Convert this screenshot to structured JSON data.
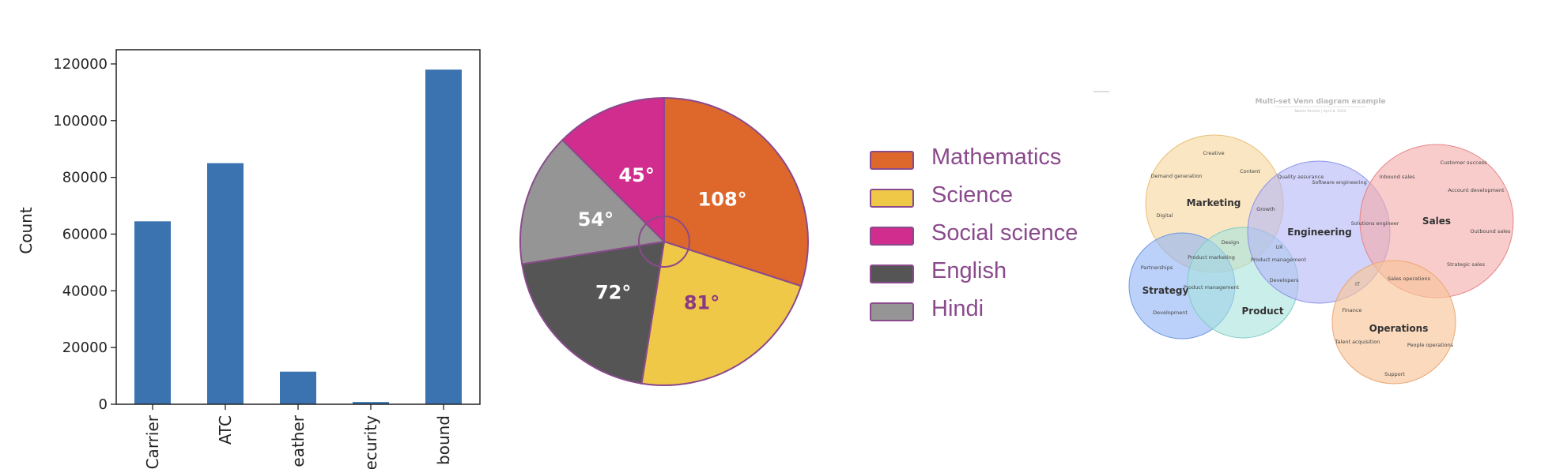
{
  "chart_data": [
    {
      "type": "bar",
      "categories": [
        "Carrier",
        "ATC",
        "eather",
        "ecurity",
        "bound"
      ],
      "values": [
        64500,
        85000,
        11500,
        800,
        118000
      ],
      "ylabel": "Count",
      "ylim": [
        0,
        125000
      ],
      "yticks": [
        0,
        20000,
        40000,
        60000,
        80000,
        100000,
        120000
      ],
      "grid": false,
      "colors": {
        "bar": "#3a73b0"
      }
    },
    {
      "type": "pie",
      "slices": [
        {
          "name": "Mathematics",
          "degrees": 108,
          "label": "108°",
          "color": "#de672b"
        },
        {
          "name": "Science",
          "degrees": 81,
          "label": "81°",
          "color": "#f0c847"
        },
        {
          "name": "English",
          "degrees": 72,
          "label": "72°",
          "color": "#555555"
        },
        {
          "name": "Hindi",
          "degrees": 54,
          "label": "54°",
          "color": "#959595"
        },
        {
          "name": "Social science",
          "degrees": 45,
          "label": "45°",
          "color": "#d12d8e"
        }
      ],
      "legend": [
        "Mathematics",
        "Science",
        "Social science",
        "English",
        "Hindi"
      ],
      "legend_placement": "right"
    }
  ],
  "venn": {
    "title": "Multi-set Venn diagram example",
    "subtitle": "Nadim Panichi  |  April 8, 2024",
    "sets": [
      {
        "name": "Marketing",
        "color": "#f7d9a3"
      },
      {
        "name": "Engineering",
        "color": "#b3b6f7"
      },
      {
        "name": "Sales",
        "color": "#f5aaaa"
      },
      {
        "name": "Strategy",
        "color": "#8fb3f5"
      },
      {
        "name": "Product",
        "color": "#a6e2dc"
      },
      {
        "name": "Operations",
        "color": "#f8c59a"
      }
    ],
    "items": {
      "creative": "Creative",
      "demand": "Demand generation",
      "content": "Content",
      "digital": "Digital",
      "growth": "Growth",
      "design": "Design",
      "quality": "Quality assurance",
      "software": "Software engineering",
      "customer": "Customer success",
      "inbound": "Inbound sales",
      "account": "Account development",
      "solutions": "Solutions engineer",
      "outbound": "Outbound sales",
      "strategic": "Strategic sales",
      "sales_ops": "Sales operations",
      "it": "IT",
      "ux": "UX",
      "pm_eng": "Product management",
      "developers": "Developers",
      "pm_mkt": "Product marketing",
      "pm_strat": "Product management",
      "partnerships": "Partnerships",
      "development": "Development",
      "finance": "Finance",
      "talent": "Talent acquisition",
      "people": "People operations",
      "support": "Support"
    }
  }
}
